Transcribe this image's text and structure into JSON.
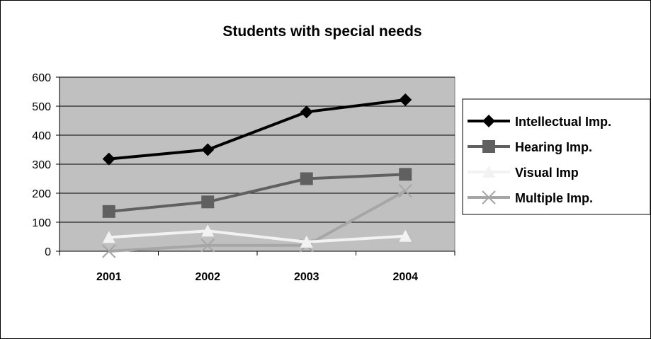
{
  "chart_data": {
    "type": "line",
    "title": "Students with special needs",
    "categories": [
      "2001",
      "2002",
      "2003",
      "2004"
    ],
    "ylim": [
      0,
      600
    ],
    "yticks": [
      0,
      100,
      200,
      300,
      400,
      500,
      600
    ],
    "grid": true,
    "legend_position": "right",
    "plot_background": "#c0c0c0",
    "series": [
      {
        "name": "Intellectual Imp.",
        "values": [
          318,
          350,
          480,
          522
        ],
        "color": "#000000",
        "marker": "diamond"
      },
      {
        "name": "Hearing Imp.",
        "values": [
          137,
          170,
          250,
          265
        ],
        "color": "#606060",
        "marker": "square"
      },
      {
        "name": "Visual Imp",
        "values": [
          48,
          70,
          32,
          52
        ],
        "color": "#f2f2f2",
        "marker": "triangle"
      },
      {
        "name": "Multiple Imp.",
        "values": [
          0,
          20,
          20,
          208
        ],
        "color": "#a6a6a6",
        "marker": "x"
      }
    ]
  }
}
